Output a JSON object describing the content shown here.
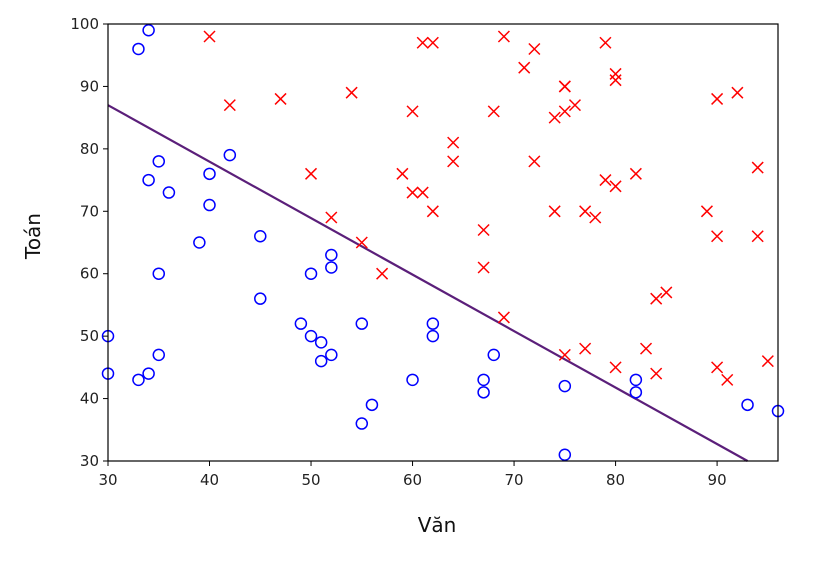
{
  "chart_data": {
    "type": "scatter",
    "title": "",
    "xlabel": "Văn",
    "ylabel": "Toán",
    "xlim": [
      30,
      96
    ],
    "ylim": [
      30,
      100
    ],
    "xticks": [
      30,
      40,
      50,
      60,
      70,
      80,
      90
    ],
    "yticks": [
      30,
      40,
      50,
      60,
      70,
      80,
      90,
      100
    ],
    "grid": false,
    "colors": {
      "cross": "#ff0000",
      "circle": "#0000ff",
      "line": "#5b1f7a"
    },
    "series": [
      {
        "marker": "x",
        "points": [
          [
            40,
            98
          ],
          [
            42,
            87
          ],
          [
            47,
            88
          ],
          [
            50,
            76
          ],
          [
            52,
            69
          ],
          [
            54,
            89
          ],
          [
            55,
            65
          ],
          [
            57,
            60
          ],
          [
            59,
            76
          ],
          [
            60,
            86
          ],
          [
            60,
            73
          ],
          [
            61,
            73
          ],
          [
            61,
            97
          ],
          [
            62,
            97
          ],
          [
            62,
            70
          ],
          [
            64,
            81
          ],
          [
            64,
            78
          ],
          [
            67,
            67
          ],
          [
            67,
            61
          ],
          [
            68,
            86
          ],
          [
            69,
            98
          ],
          [
            69,
            53
          ],
          [
            71,
            93
          ],
          [
            72,
            96
          ],
          [
            72,
            78
          ],
          [
            74,
            85
          ],
          [
            74,
            70
          ],
          [
            75,
            90
          ],
          [
            75,
            90
          ],
          [
            75,
            86
          ],
          [
            75,
            47
          ],
          [
            76,
            87
          ],
          [
            77,
            70
          ],
          [
            77,
            48
          ],
          [
            78,
            69
          ],
          [
            79,
            97
          ],
          [
            79,
            75
          ],
          [
            80,
            92
          ],
          [
            80,
            91
          ],
          [
            80,
            74
          ],
          [
            80,
            45
          ],
          [
            82,
            76
          ],
          [
            83,
            48
          ],
          [
            84,
            56
          ],
          [
            84,
            44
          ],
          [
            85,
            57
          ],
          [
            89,
            70
          ],
          [
            90,
            88
          ],
          [
            90,
            66
          ],
          [
            90,
            45
          ],
          [
            91,
            43
          ],
          [
            92,
            89
          ],
          [
            94,
            77
          ],
          [
            94,
            66
          ],
          [
            95,
            46
          ]
        ]
      },
      {
        "marker": "o",
        "points": [
          [
            30,
            50
          ],
          [
            30,
            44
          ],
          [
            33,
            96
          ],
          [
            33,
            43
          ],
          [
            34,
            99
          ],
          [
            34,
            75
          ],
          [
            34,
            44
          ],
          [
            35,
            78
          ],
          [
            35,
            60
          ],
          [
            35,
            47
          ],
          [
            36,
            73
          ],
          [
            39,
            65
          ],
          [
            40,
            76
          ],
          [
            40,
            71
          ],
          [
            42,
            79
          ],
          [
            45,
            66
          ],
          [
            45,
            56
          ],
          [
            49,
            52
          ],
          [
            50,
            60
          ],
          [
            50,
            50
          ],
          [
            51,
            49
          ],
          [
            51,
            46
          ],
          [
            52,
            63
          ],
          [
            52,
            61
          ],
          [
            52,
            47
          ],
          [
            55,
            52
          ],
          [
            55,
            36
          ],
          [
            56,
            39
          ],
          [
            60,
            43
          ],
          [
            62,
            52
          ],
          [
            62,
            50
          ],
          [
            67,
            43
          ],
          [
            67,
            41
          ],
          [
            68,
            47
          ],
          [
            75,
            42
          ],
          [
            75,
            31
          ],
          [
            82,
            43
          ],
          [
            82,
            41
          ],
          [
            93,
            39
          ],
          [
            96,
            38
          ]
        ]
      }
    ],
    "decision_boundary": {
      "x": [
        30,
        93
      ],
      "y": [
        87,
        30
      ]
    }
  }
}
